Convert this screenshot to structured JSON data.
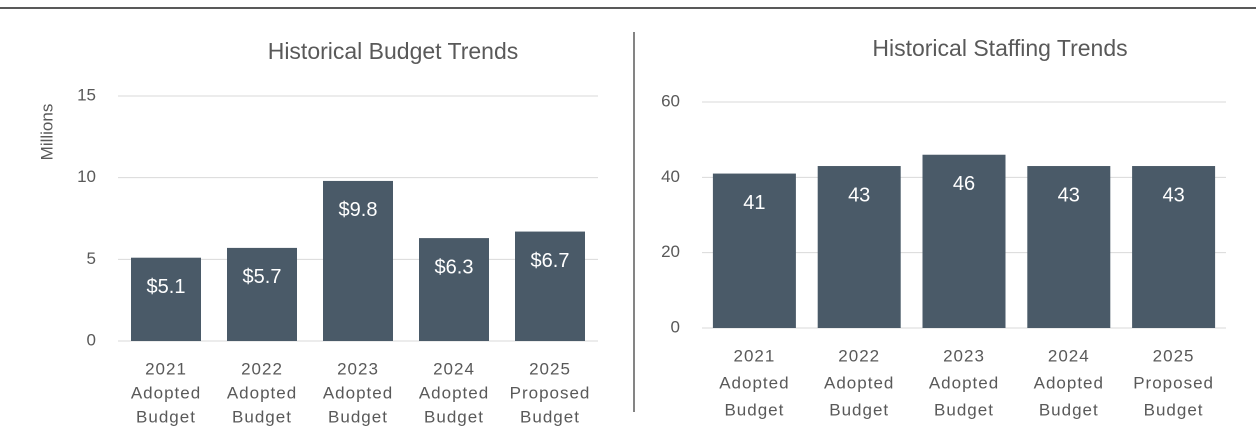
{
  "chart_data": [
    {
      "type": "bar",
      "title": "Historical Budget Trends",
      "y_label": "Millions",
      "categories": [
        [
          "2021",
          "Adopted",
          "Budget"
        ],
        [
          "2022",
          "Adopted",
          "Budget"
        ],
        [
          "2023",
          "Adopted",
          "Budget"
        ],
        [
          "2024",
          "Adopted",
          "Budget"
        ],
        [
          "2025",
          "Proposed",
          "Budget"
        ]
      ],
      "values": [
        5.1,
        5.7,
        9.8,
        6.3,
        6.7
      ],
      "value_labels": [
        "$5.1",
        "$5.7",
        "$9.8",
        "$6.3",
        "$6.7"
      ],
      "color": "#4a5a68",
      "ylim": [
        0,
        15
      ],
      "yticks": [
        0,
        5,
        10,
        15
      ],
      "grid": true
    },
    {
      "type": "bar",
      "title": "Historical Staffing Trends",
      "categories": [
        [
          "2021",
          "Adopted",
          "Budget"
        ],
        [
          "2022",
          "Adopted",
          "Budget"
        ],
        [
          "2023",
          "Adopted",
          "Budget"
        ],
        [
          "2024",
          "Adopted",
          "Budget"
        ],
        [
          "2025",
          "Proposed",
          "Budget"
        ]
      ],
      "values": [
        41,
        43,
        46,
        43,
        43
      ],
      "color": "#4a5a68",
      "ylim": [
        0,
        60
      ],
      "yticks": [
        0,
        20,
        40,
        60
      ],
      "grid": true
    }
  ]
}
